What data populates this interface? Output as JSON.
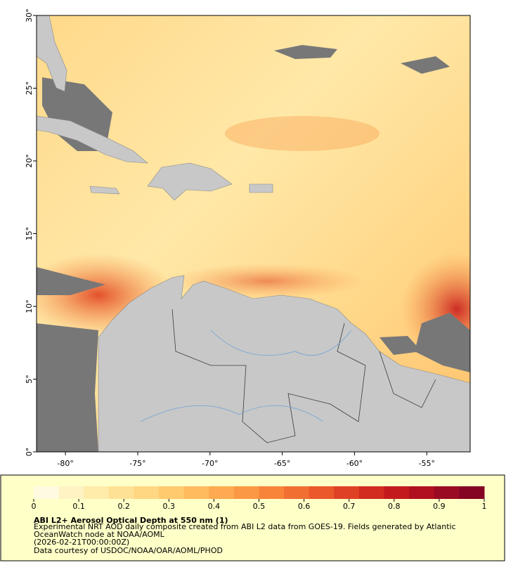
{
  "chart_data": {
    "type": "map",
    "xlim": [
      -82,
      -52
    ],
    "ylim": [
      0,
      30
    ],
    "xticks": [
      {
        "value": -80,
        "label": "-80°"
      },
      {
        "value": -75,
        "label": "-75°"
      },
      {
        "value": -70,
        "label": "-70°"
      },
      {
        "value": -65,
        "label": "-65°"
      },
      {
        "value": -60,
        "label": "-60°"
      },
      {
        "value": -55,
        "label": "-55°"
      }
    ],
    "yticks": [
      {
        "value": 0,
        "label": "0°"
      },
      {
        "value": 5,
        "label": "5°"
      },
      {
        "value": 10,
        "label": "10°"
      },
      {
        "value": 15,
        "label": "15°"
      },
      {
        "value": 20,
        "label": "20°"
      },
      {
        "value": 25,
        "label": "25°"
      },
      {
        "value": 30,
        "label": "30°"
      }
    ],
    "colorbar": {
      "range": [
        0,
        1
      ],
      "ticks": [
        0,
        0.1,
        0.2,
        0.3,
        0.4,
        0.5,
        0.6,
        0.7,
        0.8,
        0.9,
        1
      ],
      "colors": [
        "#fffbe0",
        "#fff3c4",
        "#ffebaa",
        "#ffe196",
        "#ffd682",
        "#ffc96e",
        "#ffbb5e",
        "#fdaa50",
        "#fb9844",
        "#f8843a",
        "#f26f32",
        "#ea582b",
        "#df4125",
        "#d22b20",
        "#c31a1d",
        "#b0101f",
        "#9a0a22",
        "#850424"
      ]
    },
    "title": "ABI L2+ Aerosol Optical Depth at 550 nm (1)",
    "description": "Experimental NRT AOD daily composite created from ABI L2 data from GOES-19. Fields generated by Atlantic OceanWatch node at NOAA/AOML",
    "timestamp": "(2026-02-21T00:00:00Z)",
    "credit": "Data courtesy of USDOC/NOAA/OAR/AOML/PHOD"
  }
}
